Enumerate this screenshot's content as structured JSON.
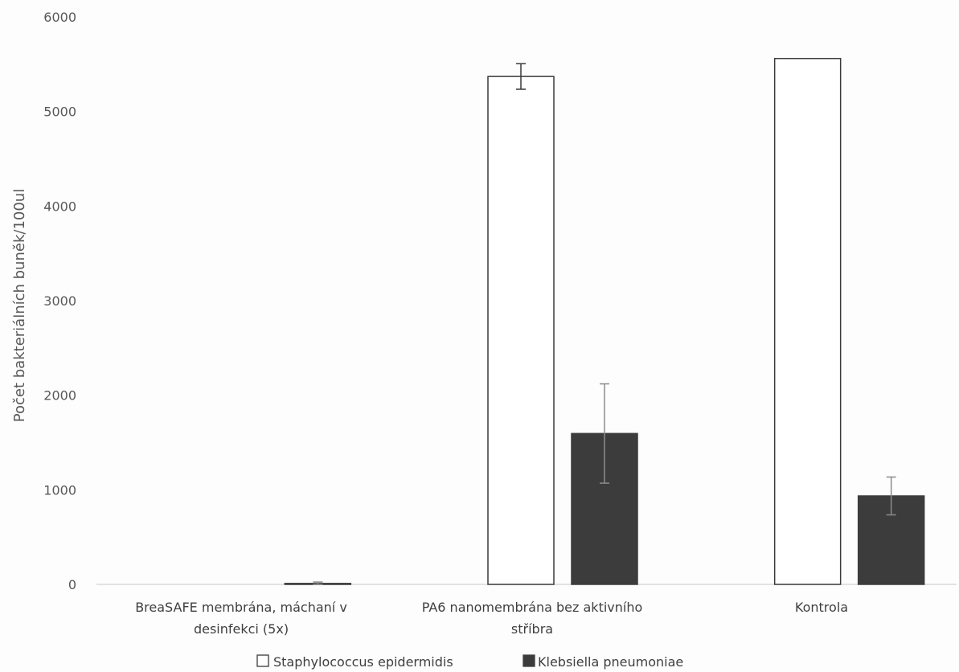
{
  "chart_data": {
    "type": "bar",
    "title": "",
    "xlabel": "",
    "ylabel": "Počet bakteriálních buněk/100ul",
    "ylim": [
      0,
      6000
    ],
    "yticks": [
      0,
      1000,
      2000,
      3000,
      4000,
      5000,
      6000
    ],
    "grid": false,
    "legend_position": "bottom",
    "categories": [
      [
        "BreaSAFE membrána, máchaní v",
        "desinfekci (5x)"
      ],
      [
        "PA6 nanomembrána bez aktivního",
        "stříbra"
      ],
      [
        "Kontrola"
      ]
    ],
    "series": [
      {
        "name": "Staphylococcus epidermidis",
        "fill": "#ffffff",
        "stroke": "#3a3a3a",
        "values": [
          0,
          5370,
          5560
        ],
        "errors": [
          0,
          135,
          0
        ]
      },
      {
        "name": "Klebsiella pneumoniae",
        "fill": "#3c3c3c",
        "stroke": "#3c3c3c",
        "values": [
          10,
          1595,
          935
        ],
        "errors": [
          15,
          525,
          200
        ]
      }
    ]
  }
}
